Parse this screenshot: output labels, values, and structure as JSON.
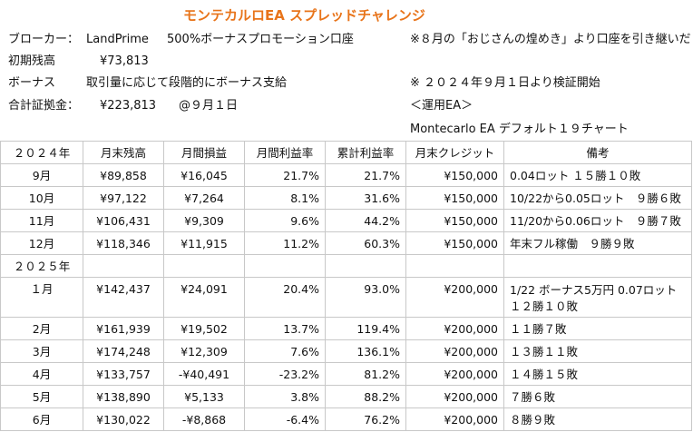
{
  "title": "モンテカルロEA スプレッドチャレンジ",
  "info": {
    "broker_label": "ブローカー：",
    "broker_value": "LandPrime",
    "broker_note": "500%ボーナスプロモーション口座",
    "initial_label": "初期残高",
    "initial_value": "¥73,813",
    "bonus_label": "ボーナス",
    "bonus_value": "取引量に応じて段階的にボーナス支給",
    "total_label": "合計証拠金：",
    "total_value": "¥223,813",
    "total_date": "@９月１日",
    "note1": "※８月の「おじさんの煌めき」より口座を引き継いだ",
    "note2": "※ ２０２４年９月１日より検証開始",
    "ea_label": "＜運用EA＞",
    "ea_value": "Montecarlo EA デフォルト１９チャート"
  },
  "table": {
    "headers": [
      "２０２４年",
      "月末残高",
      "月間損益",
      "月間利益率",
      "累計利益率",
      "月末クレジット",
      "備考"
    ],
    "rows_2024": [
      [
        "9月",
        "¥89,858",
        "¥16,045",
        "21.7%",
        "21.7%",
        "¥150,000",
        "0.04ロット １５勝１０敗"
      ],
      [
        "10月",
        "¥97,122",
        "¥7,264",
        "8.1%",
        "31.6%",
        "¥150,000",
        "10/22から0.05ロット　９勝６敗"
      ],
      [
        "11月",
        "¥106,431",
        "¥9,309",
        "9.6%",
        "44.2%",
        "¥150,000",
        "11/20から0.06ロット　９勝７敗"
      ],
      [
        "12月",
        "¥118,346",
        "¥11,915",
        "11.2%",
        "60.3%",
        "¥150,000",
        "年末フル稼働　９勝９敗"
      ]
    ],
    "year_2025": "２０２５年",
    "jan_2025": {
      "month": "１月",
      "balance": "¥142,437",
      "pnl": "¥24,091",
      "monthly": "20.4%",
      "cumulative": "93.0%",
      "credit": "¥200,000",
      "note_line1": "1/22 ボーナス5万円 0.07ロット",
      "note_line2": "１２勝１０敗"
    },
    "rows_2025": [
      [
        "2月",
        "¥161,939",
        "¥19,502",
        "13.7%",
        "119.4%",
        "¥200,000",
        "１１勝７敗"
      ],
      [
        "3月",
        "¥174,248",
        "¥12,309",
        "7.6%",
        "136.1%",
        "¥200,000",
        "１３勝１１敗"
      ],
      [
        "4月",
        "¥133,757",
        "-¥40,491",
        "-23.2%",
        "81.2%",
        "¥200,000",
        "１４勝１５敗"
      ],
      [
        "5月",
        "¥138,890",
        "¥5,133",
        "3.8%",
        "88.2%",
        "¥200,000",
        "７勝６敗"
      ],
      [
        "6月",
        "¥130,022",
        "-¥8,868",
        "-6.4%",
        "76.2%",
        "¥200,000",
        "８勝９敗"
      ]
    ]
  },
  "colors": {
    "title": "#e8741a",
    "grid": "#c8c8c8"
  }
}
